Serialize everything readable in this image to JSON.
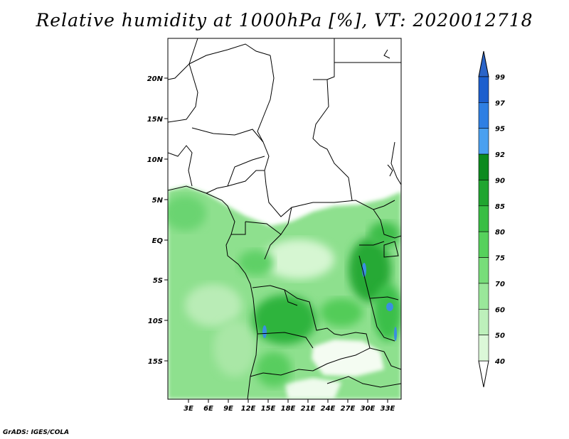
{
  "title": "Relative humidity at 1000hPa [%], VT: 2020012718",
  "credit": "GrADS: IGES/COLA",
  "lat_labels": [
    "20N",
    "15N",
    "10N",
    "5N",
    "EQ",
    "5S",
    "10S",
    "15S"
  ],
  "lon_labels": [
    "3E",
    "6E",
    "9E",
    "12E",
    "15E",
    "18E",
    "21E",
    "24E",
    "27E",
    "30E",
    "33E"
  ],
  "colorbar": {
    "levels": [
      "99",
      "97",
      "95",
      "92",
      "90",
      "85",
      "80",
      "75",
      "70",
      "60",
      "50",
      "40"
    ],
    "colors": [
      "#1c5fce",
      "#2e7fe3",
      "#4aa0f0",
      "#0c8a1e",
      "#20a530",
      "#38be44",
      "#56d15c",
      "#78dd7a",
      "#9ae79a",
      "#bdf0bb",
      "#dbf8d8",
      "#f0fcee"
    ],
    "top_arrow_color": "#2a64c8",
    "bottom_arrow_color": "#ffffff"
  }
}
